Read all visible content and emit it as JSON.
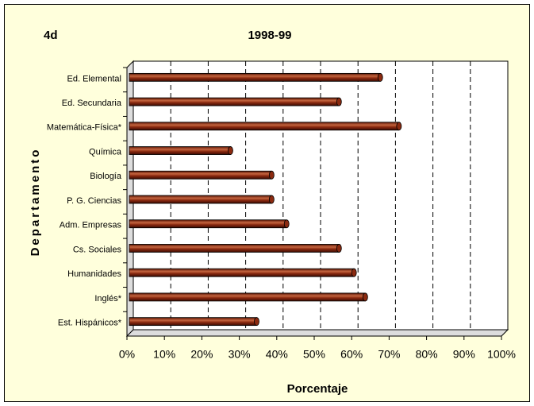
{
  "chart_data": {
    "type": "bar",
    "orientation": "horizontal",
    "title": "1998-99",
    "label": "4d",
    "x_label": "Porcentaje",
    "y_label": "Departamento",
    "categories": [
      "Ed. Elemental",
      "Ed. Secundaria",
      "Matemática-Física*",
      "Química",
      "Biología",
      "P. G. Ciencias",
      "Adm. Empresas",
      "Cs. Sociales",
      "Humanidades",
      "Inglés*",
      "Est. Hispánicos*"
    ],
    "values": [
      67,
      56,
      72,
      27,
      38,
      38,
      42,
      56,
      60,
      63,
      34
    ],
    "color": "#8b2a10",
    "xlim": [
      0,
      100
    ],
    "xticks": [
      {
        "value": 0,
        "label": "0%"
      },
      {
        "value": 10,
        "label": "10%"
      },
      {
        "value": 20,
        "label": "20%"
      },
      {
        "value": 30,
        "label": "30%"
      },
      {
        "value": 40,
        "label": "40%"
      },
      {
        "value": 50,
        "label": "50%"
      },
      {
        "value": 60,
        "label": "60%"
      },
      {
        "value": 70,
        "label": "70%"
      },
      {
        "value": 80,
        "label": "80%"
      },
      {
        "value": 90,
        "label": "90%"
      },
      {
        "value": 100,
        "label": "100%"
      }
    ],
    "grid": true
  }
}
